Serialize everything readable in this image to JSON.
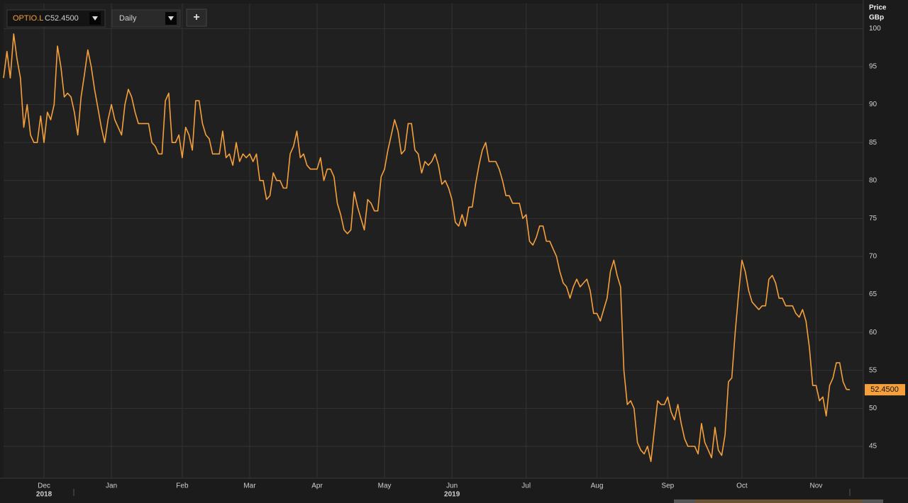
{
  "toolbar": {
    "symbol": "OPTIO.L",
    "quote": "C52.4500",
    "interval": "Daily",
    "add_button": "+"
  },
  "chart_data": {
    "type": "line",
    "y_axis_title": "Price",
    "y_axis_unit": "GBp",
    "color": "#f5a03c",
    "grid": true,
    "values": [
      93.5,
      97,
      93.5,
      99.3,
      96,
      93.5,
      87,
      90,
      86,
      85,
      85,
      88.5,
      85,
      89,
      88,
      90,
      97.7,
      95,
      91,
      91.5,
      91,
      89,
      86,
      91,
      94,
      97.2,
      95,
      92,
      89.5,
      87,
      85,
      88,
      90,
      88,
      87,
      86,
      90,
      92,
      91,
      89,
      87.5,
      87.5,
      87.5,
      87.5,
      85,
      84.5,
      83.5,
      83.5,
      90.5,
      91.5,
      85,
      85,
      86,
      83,
      87,
      86,
      84,
      90.5,
      90.5,
      87.5,
      86,
      85.5,
      83.5,
      83.5,
      83.5,
      86.5,
      83,
      83.5,
      82,
      85,
      82.5,
      83.5,
      83,
      83.5,
      82.5,
      83.5,
      80,
      80,
      77.5,
      78,
      81,
      80,
      80,
      79,
      79,
      83.5,
      84.5,
      86.5,
      83,
      83.5,
      82,
      81.5,
      81.5,
      81.5,
      83,
      80,
      81.5,
      81.5,
      80.5,
      77,
      75.5,
      73.5,
      73,
      73.5,
      78.5,
      76.5,
      75,
      73.5,
      77.5,
      77,
      76,
      76,
      80.5,
      81.5,
      84,
      86,
      88,
      86.5,
      83.5,
      84,
      87.5,
      87.5,
      84,
      83.5,
      81,
      82.5,
      82,
      82.5,
      83.5,
      82,
      79.5,
      80,
      79,
      77.5,
      74.5,
      74,
      75.5,
      74,
      76.5,
      76.5,
      79.5,
      82,
      84,
      85,
      82.5,
      82.5,
      82.5,
      81.5,
      80,
      78,
      78,
      77,
      77,
      77,
      75,
      75.5,
      72,
      71.5,
      72.5,
      74,
      74,
      72,
      72,
      71,
      70,
      68,
      66.5,
      66,
      64.5,
      66,
      67,
      66,
      66.5,
      67,
      65.5,
      62.5,
      62.5,
      61.5,
      63,
      64.5,
      68,
      69.5,
      67.5,
      66,
      55,
      50.5,
      51,
      50,
      45.5,
      44.5,
      44,
      45,
      43,
      47,
      51,
      50.5,
      50.5,
      51.5,
      49.5,
      48.5,
      50.5,
      48,
      46,
      45,
      45,
      45,
      44,
      48,
      45.5,
      44.5,
      43.5,
      47.5,
      44.5,
      43.8,
      46.5,
      53.5,
      54,
      60,
      65,
      69.5,
      68,
      65.5,
      64,
      63.5,
      63,
      63.5,
      63.5,
      67,
      67.5,
      66.5,
      64.5,
      64.5,
      63.5,
      63.5,
      63.5,
      62.5,
      62,
      63,
      61.5,
      58,
      53,
      53,
      51,
      51.5,
      49,
      53,
      54,
      56,
      56,
      53.5,
      52.5,
      52.45
    ],
    "last_price": {
      "value": 52.45,
      "label": "52.4500"
    },
    "xlim": [
      0,
      255
    ],
    "xticks": [
      {
        "value": 12,
        "label": "Dec"
      },
      {
        "value": 32,
        "label": "Jan"
      },
      {
        "value": 53,
        "label": "Feb"
      },
      {
        "value": 73,
        "label": "Mar"
      },
      {
        "value": 93,
        "label": "Apr"
      },
      {
        "value": 113,
        "label": "May"
      },
      {
        "value": 133,
        "label": "Jun"
      },
      {
        "value": 155,
        "label": "Jul"
      },
      {
        "value": 176,
        "label": "Aug"
      },
      {
        "value": 197,
        "label": "Sep"
      },
      {
        "value": 219,
        "label": "Oct"
      },
      {
        "value": 241,
        "label": "Nov"
      }
    ],
    "year_labels": [
      {
        "value": 12,
        "label": "2018"
      },
      {
        "value": 133,
        "label": "2019"
      }
    ],
    "ylim": [
      40.8,
      103.3
    ],
    "yticks": [
      45,
      50,
      55,
      60,
      65,
      70,
      75,
      80,
      85,
      90,
      95,
      100
    ]
  }
}
